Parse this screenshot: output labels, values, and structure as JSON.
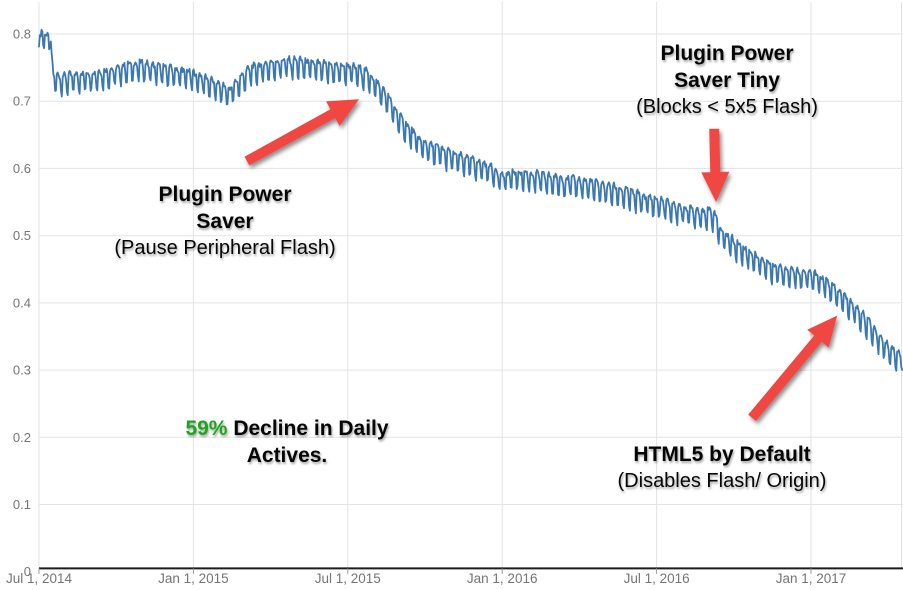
{
  "chart_data": {
    "type": "line",
    "title": "",
    "x_ticks": [
      {
        "month": 0,
        "label": "Jul 1, 2014"
      },
      {
        "month": 6,
        "label": "Jan 1, 2015"
      },
      {
        "month": 12,
        "label": "Jul 1, 2015"
      },
      {
        "month": 18,
        "label": "Jan 1, 2016"
      },
      {
        "month": 24,
        "label": "Jul 1, 2016"
      },
      {
        "month": 30,
        "label": "Jan 1, 2017"
      }
    ],
    "y_ticks": [
      {
        "v": 0.8,
        "label": "0.8"
      },
      {
        "v": 0.7,
        "label": "0.7"
      },
      {
        "v": 0.6,
        "label": "0.6"
      },
      {
        "v": 0.5,
        "label": "0.5"
      },
      {
        "v": 0.4,
        "label": "0.4"
      },
      {
        "v": 0.3,
        "label": "0.3"
      },
      {
        "v": 0.2,
        "label": "0.2"
      },
      {
        "v": 0.1,
        "label": "0.1"
      },
      {
        "v": 0,
        "label": "0"
      }
    ],
    "ylim": [
      0,
      0.85
    ],
    "x_span_months": 33.6,
    "grid": true,
    "legend": "none",
    "trend_points": [
      [
        0,
        0.78
      ],
      [
        0.12,
        0.805
      ],
      [
        0.3,
        0.79
      ],
      [
        0.42,
        0.8
      ],
      [
        0.55,
        0.735
      ],
      [
        1,
        0.732
      ],
      [
        1.5,
        0.735
      ],
      [
        2,
        0.737
      ],
      [
        2.5,
        0.74
      ],
      [
        3,
        0.744
      ],
      [
        3.5,
        0.75
      ],
      [
        4,
        0.752
      ],
      [
        4.5,
        0.748
      ],
      [
        5,
        0.744
      ],
      [
        5.5,
        0.742
      ],
      [
        6,
        0.737
      ],
      [
        6.5,
        0.73
      ],
      [
        7,
        0.72
      ],
      [
        7.4,
        0.713
      ],
      [
        7.8,
        0.73
      ],
      [
        8.2,
        0.745
      ],
      [
        9,
        0.753
      ],
      [
        9.5,
        0.756
      ],
      [
        10,
        0.756
      ],
      [
        10.5,
        0.753
      ],
      [
        11,
        0.75
      ],
      [
        11.5,
        0.748
      ],
      [
        12,
        0.748
      ],
      [
        12.4,
        0.744
      ],
      [
        12.8,
        0.738
      ],
      [
        13.2,
        0.72
      ],
      [
        13.6,
        0.7
      ],
      [
        14,
        0.673
      ],
      [
        14.4,
        0.655
      ],
      [
        14.8,
        0.638
      ],
      [
        15.2,
        0.63
      ],
      [
        15.6,
        0.625
      ],
      [
        16,
        0.618
      ],
      [
        16.5,
        0.612
      ],
      [
        17,
        0.606
      ],
      [
        17.5,
        0.6
      ],
      [
        17.8,
        0.592
      ],
      [
        18,
        0.585
      ],
      [
        18.3,
        0.588
      ],
      [
        18.6,
        0.59
      ],
      [
        19,
        0.588
      ],
      [
        19.5,
        0.585
      ],
      [
        20,
        0.582
      ],
      [
        20.5,
        0.58
      ],
      [
        21,
        0.578
      ],
      [
        21.5,
        0.574
      ],
      [
        22,
        0.57
      ],
      [
        22.5,
        0.566
      ],
      [
        23,
        0.56
      ],
      [
        23.5,
        0.554
      ],
      [
        24,
        0.549
      ],
      [
        24.5,
        0.543
      ],
      [
        25,
        0.538
      ],
      [
        25.5,
        0.534
      ],
      [
        26,
        0.532
      ],
      [
        26.3,
        0.528
      ],
      [
        26.45,
        0.505
      ],
      [
        26.7,
        0.497
      ],
      [
        27,
        0.488
      ],
      [
        27.5,
        0.474
      ],
      [
        28,
        0.462
      ],
      [
        28.5,
        0.452
      ],
      [
        29,
        0.447
      ],
      [
        29.4,
        0.444
      ],
      [
        29.8,
        0.441
      ],
      [
        30.2,
        0.437
      ],
      [
        30.6,
        0.428
      ],
      [
        31,
        0.415
      ],
      [
        31.4,
        0.402
      ],
      [
        31.8,
        0.387
      ],
      [
        32.2,
        0.37
      ],
      [
        32.6,
        0.349
      ],
      [
        33,
        0.333
      ],
      [
        33.3,
        0.323
      ],
      [
        33.6,
        0.318
      ]
    ],
    "oscillation": {
      "period_days": 7,
      "amplitude": 0.0135
    },
    "colors": {
      "line_blue": "#3b77b0",
      "arrow_red": "#f04743",
      "highlight_green": "#1fa41f",
      "axis_label_gray": "#757575",
      "gridline_gray": "#e3e3e3",
      "axis_line_dark": "#1c1c1c",
      "tick_gray": "#9a9a9a"
    },
    "arrows": [
      {
        "name": "arrow-plugin-power-saver",
        "from_m": 8.08,
        "from_v": 0.611,
        "to_m": 12.44,
        "to_v": 0.703
      },
      {
        "name": "arrow-plugin-power-saver-tiny",
        "from_m": 26.24,
        "from_v": 0.659,
        "to_m": 26.31,
        "to_v": 0.55
      },
      {
        "name": "arrow-html5-by-default",
        "from_m": 27.71,
        "from_v": 0.229,
        "to_m": 31.02,
        "to_v": 0.381
      }
    ],
    "annotations": {
      "pps": {
        "title1": "Plugin Power",
        "title2": "Saver",
        "sub": "(Pause Peripheral Flash)"
      },
      "tiny": {
        "title1": "Plugin Power",
        "title2": "Saver Tiny",
        "sub": "(Blocks < 5x5 Flash)"
      },
      "decline": {
        "highlight": "59%",
        "rest": " Decline in Daily",
        "line2": "Actives."
      },
      "html5": {
        "title1": "HTML5 by Default",
        "sub": "(Disables Flash/ Origin)"
      }
    }
  }
}
